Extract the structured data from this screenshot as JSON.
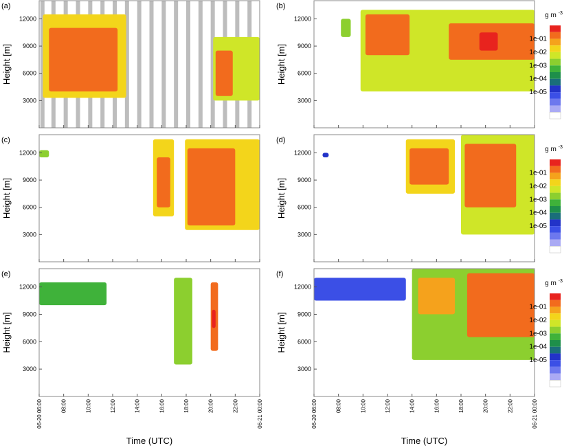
{
  "figure": {
    "xlabel": "Time (UTC)",
    "ylabel": "Height [m]",
    "x_ticks": [
      "06-20 06:00",
      "08:00",
      "10:00",
      "12:00",
      "14:00",
      "16:00",
      "18:00",
      "20:00",
      "22:00",
      "06-21 00:00"
    ],
    "y_ticks": [
      3000,
      6000,
      9000,
      12000
    ],
    "colorbar": {
      "unit": "g m",
      "unit_exp": "-3",
      "labels": [
        "1e-01",
        "1e-02",
        "1e-03",
        "1e-04",
        "1e-05"
      ],
      "colors": [
        "#e8231e",
        "#f26b1d",
        "#f5a21c",
        "#f3d51b",
        "#cfe628",
        "#8ccf2f",
        "#3fb23a",
        "#1e8f4a",
        "#1a6e7a",
        "#2233c8",
        "#3b4fe6",
        "#6d78ee",
        "#aaaaf4",
        "#ffffff"
      ]
    }
  },
  "chart_data": [
    {
      "panel": "(a)",
      "type": "heatmap",
      "xlim": [
        6,
        24
      ],
      "ylim": [
        0,
        14000
      ],
      "has_colorbar": false,
      "gaps_gray": [
        6.1,
        7.0,
        8.0,
        9.0,
        10.0,
        11.0,
        12.0,
        13.0,
        14.0,
        15.0,
        16.0,
        17.0,
        18.0,
        19.0,
        20.0,
        21.0,
        22.0,
        23.0
      ],
      "regions": [
        {
          "x": [
            6.3,
            13.1
          ],
          "y": [
            3300,
            12500
          ],
          "level": 3
        },
        {
          "x": [
            6.8,
            12.4
          ],
          "y": [
            4000,
            11000
          ],
          "level": 1
        },
        {
          "x": [
            20.2,
            24.0
          ],
          "y": [
            3000,
            10000
          ],
          "level": 4
        },
        {
          "x": [
            20.4,
            21.8
          ],
          "y": [
            3500,
            8500
          ],
          "level": 1
        }
      ]
    },
    {
      "panel": "(b)",
      "type": "heatmap",
      "xlim": [
        6,
        24
      ],
      "ylim": [
        0,
        14000
      ],
      "has_colorbar": true,
      "regions": [
        {
          "x": [
            8.2,
            9.0
          ],
          "y": [
            10000,
            12000
          ],
          "level": 5
        },
        {
          "x": [
            9.8,
            24.0
          ],
          "y": [
            4000,
            13000
          ],
          "level": 4
        },
        {
          "x": [
            10.2,
            13.8
          ],
          "y": [
            8000,
            12500
          ],
          "level": 1
        },
        {
          "x": [
            17.0,
            24.0
          ],
          "y": [
            7500,
            11500
          ],
          "level": 1
        },
        {
          "x": [
            19.5,
            21.0
          ],
          "y": [
            8500,
            10500
          ],
          "level": 0
        }
      ]
    },
    {
      "panel": "(c)",
      "type": "heatmap",
      "xlim": [
        6,
        24
      ],
      "ylim": [
        0,
        14000
      ],
      "has_colorbar": false,
      "regions": [
        {
          "x": [
            6.0,
            6.8
          ],
          "y": [
            11500,
            12300
          ],
          "level": 5
        },
        {
          "x": [
            15.3,
            17.0
          ],
          "y": [
            5000,
            13500
          ],
          "level": 3
        },
        {
          "x": [
            15.6,
            16.7
          ],
          "y": [
            6000,
            11500
          ],
          "level": 1
        },
        {
          "x": [
            17.9,
            24.0
          ],
          "y": [
            3500,
            13500
          ],
          "level": 3
        },
        {
          "x": [
            18.1,
            22.0
          ],
          "y": [
            4000,
            12500
          ],
          "level": 1
        }
      ]
    },
    {
      "panel": "(d)",
      "type": "heatmap",
      "xlim": [
        6,
        24
      ],
      "ylim": [
        0,
        14000
      ],
      "has_colorbar": true,
      "regions": [
        {
          "x": [
            6.7,
            7.2
          ],
          "y": [
            11500,
            12000
          ],
          "level": 9
        },
        {
          "x": [
            13.5,
            17.5
          ],
          "y": [
            7500,
            13500
          ],
          "level": 3
        },
        {
          "x": [
            13.8,
            17.0
          ],
          "y": [
            8500,
            12500
          ],
          "level": 1
        },
        {
          "x": [
            18.0,
            24.0
          ],
          "y": [
            3000,
            14000
          ],
          "level": 4
        },
        {
          "x": [
            18.3,
            22.5
          ],
          "y": [
            6000,
            13000
          ],
          "level": 1
        }
      ]
    },
    {
      "panel": "(e)",
      "type": "heatmap",
      "xlim": [
        6,
        24
      ],
      "ylim": [
        0,
        14000
      ],
      "has_colorbar": false,
      "regions": [
        {
          "x": [
            6.0,
            11.5
          ],
          "y": [
            10000,
            12500
          ],
          "level": 6
        },
        {
          "x": [
            17.0,
            18.5
          ],
          "y": [
            3500,
            13000
          ],
          "level": 5
        },
        {
          "x": [
            20.0,
            20.6
          ],
          "y": [
            5000,
            12500
          ],
          "level": 1
        },
        {
          "x": [
            20.1,
            20.4
          ],
          "y": [
            7500,
            9500
          ],
          "level": 0
        }
      ]
    },
    {
      "panel": "(f)",
      "type": "heatmap",
      "xlim": [
        6,
        24
      ],
      "ylim": [
        0,
        14000
      ],
      "has_colorbar": true,
      "regions": [
        {
          "x": [
            6.0,
            13.5
          ],
          "y": [
            10500,
            13000
          ],
          "level": 10
        },
        {
          "x": [
            14.0,
            24.0
          ],
          "y": [
            4000,
            14000
          ],
          "level": 5
        },
        {
          "x": [
            14.5,
            17.5
          ],
          "y": [
            9000,
            13000
          ],
          "level": 2
        },
        {
          "x": [
            18.5,
            24.0
          ],
          "y": [
            6500,
            13500
          ],
          "level": 1
        }
      ]
    }
  ]
}
